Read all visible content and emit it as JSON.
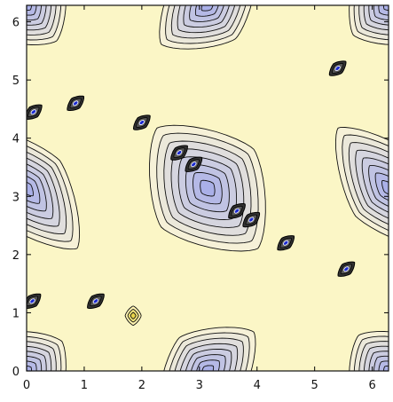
{
  "chart_data": {
    "type": "contour",
    "title": "",
    "xlabel": "",
    "ylabel": "",
    "xlim": [
      0,
      6.2832
    ],
    "ylim": [
      0,
      6.2832
    ],
    "x_ticks": [
      0,
      1,
      2,
      3,
      4,
      5,
      6
    ],
    "y_ticks": [
      0,
      1,
      2,
      3,
      4,
      5,
      6
    ],
    "x_tick_labels": [
      "0",
      "1",
      "2",
      "3",
      "4",
      "5",
      "6"
    ],
    "y_tick_labels": [
      "0",
      "1",
      "2",
      "3",
      "4",
      "5",
      "6"
    ],
    "colors": {
      "background_high": "#fbf6c6",
      "mid": "#f6f1d8",
      "low": "#bfc6ee",
      "lowest": "#aab0e8",
      "contour_line": "#111111",
      "spike_core": "#1c2bd1",
      "frame": "#111111"
    },
    "minima": [
      {
        "x": 3.14,
        "y": 3.14,
        "rx": 1.05,
        "ry": 1.35,
        "angle": -40,
        "levels": 8
      },
      {
        "x": 0.0,
        "y": 3.14,
        "rx": 0.75,
        "ry": 1.35,
        "angle": -40,
        "levels": 8
      },
      {
        "x": 6.283,
        "y": 3.14,
        "rx": 0.75,
        "ry": 1.35,
        "angle": -40,
        "levels": 8
      },
      {
        "x": 3.14,
        "y": 0.0,
        "rx": 1.05,
        "ry": 0.75,
        "angle": -40,
        "levels": 8
      },
      {
        "x": 3.14,
        "y": 6.283,
        "rx": 1.05,
        "ry": 0.75,
        "angle": -40,
        "levels": 8
      },
      {
        "x": 0.0,
        "y": 0.0,
        "rx": 0.8,
        "ry": 0.8,
        "angle": -40,
        "levels": 8
      },
      {
        "x": 6.283,
        "y": 0.0,
        "rx": 0.8,
        "ry": 0.8,
        "angle": -40,
        "levels": 8
      },
      {
        "x": 0.0,
        "y": 6.283,
        "rx": 0.8,
        "ry": 0.8,
        "angle": -40,
        "levels": 8
      },
      {
        "x": 6.283,
        "y": 6.283,
        "rx": 0.8,
        "ry": 0.8,
        "angle": -40,
        "levels": 8
      }
    ],
    "singular_points": [
      {
        "x": 0.12,
        "y": 4.45
      },
      {
        "x": 0.85,
        "y": 4.6
      },
      {
        "x": 2.0,
        "y": 4.27
      },
      {
        "x": 2.65,
        "y": 3.75
      },
      {
        "x": 2.9,
        "y": 3.55
      },
      {
        "x": 3.65,
        "y": 2.75
      },
      {
        "x": 3.9,
        "y": 2.6
      },
      {
        "x": 4.5,
        "y": 2.2
      },
      {
        "x": 5.4,
        "y": 5.2
      },
      {
        "x": 5.55,
        "y": 1.75
      },
      {
        "x": 0.1,
        "y": 1.2
      },
      {
        "x": 1.2,
        "y": 1.2
      }
    ],
    "local_maximum": {
      "x": 1.85,
      "y": 0.95
    }
  }
}
